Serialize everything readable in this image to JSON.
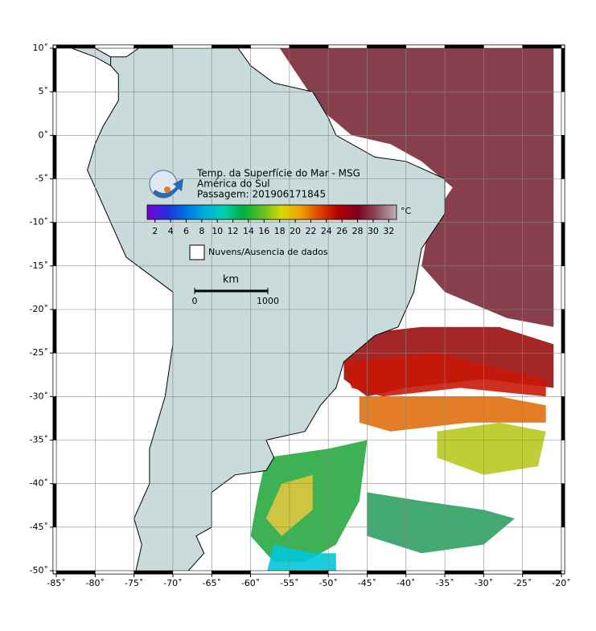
{
  "map": {
    "title_lines": [
      "Temp. da Superfície do Mar - MSG",
      "América do Sul",
      "Passagem: 201906171845"
    ],
    "lon_range": [
      -85,
      -20
    ],
    "lat_range": [
      -50,
      10
    ],
    "grid": true,
    "xticks": [
      {
        "value": -85,
        "label": "-85˚"
      },
      {
        "value": -80,
        "label": "-80˚"
      },
      {
        "value": -75,
        "label": "-75˚"
      },
      {
        "value": -70,
        "label": "-70˚"
      },
      {
        "value": -65,
        "label": "-65˚"
      },
      {
        "value": -60,
        "label": "-60˚"
      },
      {
        "value": -55,
        "label": "-55˚"
      },
      {
        "value": -50,
        "label": "-50˚"
      },
      {
        "value": -45,
        "label": "-45˚"
      },
      {
        "value": -40,
        "label": "-40˚"
      },
      {
        "value": -35,
        "label": "-35˚"
      },
      {
        "value": -30,
        "label": "-30˚"
      },
      {
        "value": -25,
        "label": "-25˚"
      },
      {
        "value": -20,
        "label": "-20˚"
      }
    ],
    "yticks": [
      {
        "value": 10,
        "label": "10˚"
      },
      {
        "value": 5,
        "label": "5˚"
      },
      {
        "value": 0,
        "label": "0˚"
      },
      {
        "value": -5,
        "label": "-5˚"
      },
      {
        "value": -10,
        "label": "-10˚"
      },
      {
        "value": -15,
        "label": "-15˚"
      },
      {
        "value": -20,
        "label": "-20˚"
      },
      {
        "value": -25,
        "label": "-25˚"
      },
      {
        "value": -30,
        "label": "-30˚"
      },
      {
        "value": -35,
        "label": "-35˚"
      },
      {
        "value": -40,
        "label": "-40˚"
      },
      {
        "value": -45,
        "label": "-45˚"
      },
      {
        "value": -50,
        "label": "-50˚"
      }
    ]
  },
  "colorbar": {
    "range": [
      1,
      33
    ],
    "ticks": [
      2,
      4,
      6,
      8,
      10,
      12,
      14,
      16,
      18,
      20,
      22,
      24,
      26,
      28,
      30,
      32
    ],
    "unit": "°C",
    "colors": [
      "#7a00d9",
      "#2a2ae0",
      "#0070e0",
      "#00b0d8",
      "#00d0b0",
      "#00b040",
      "#60c020",
      "#d8d800",
      "#f0a000",
      "#e04000",
      "#b00000",
      "#800020",
      "#905060",
      "#c0b0b8"
    ]
  },
  "legend": {
    "label": "Nuvens/Ausencia de dados"
  },
  "scale_bar": {
    "unit": "km",
    "ticks": [
      0,
      1000
    ]
  }
}
